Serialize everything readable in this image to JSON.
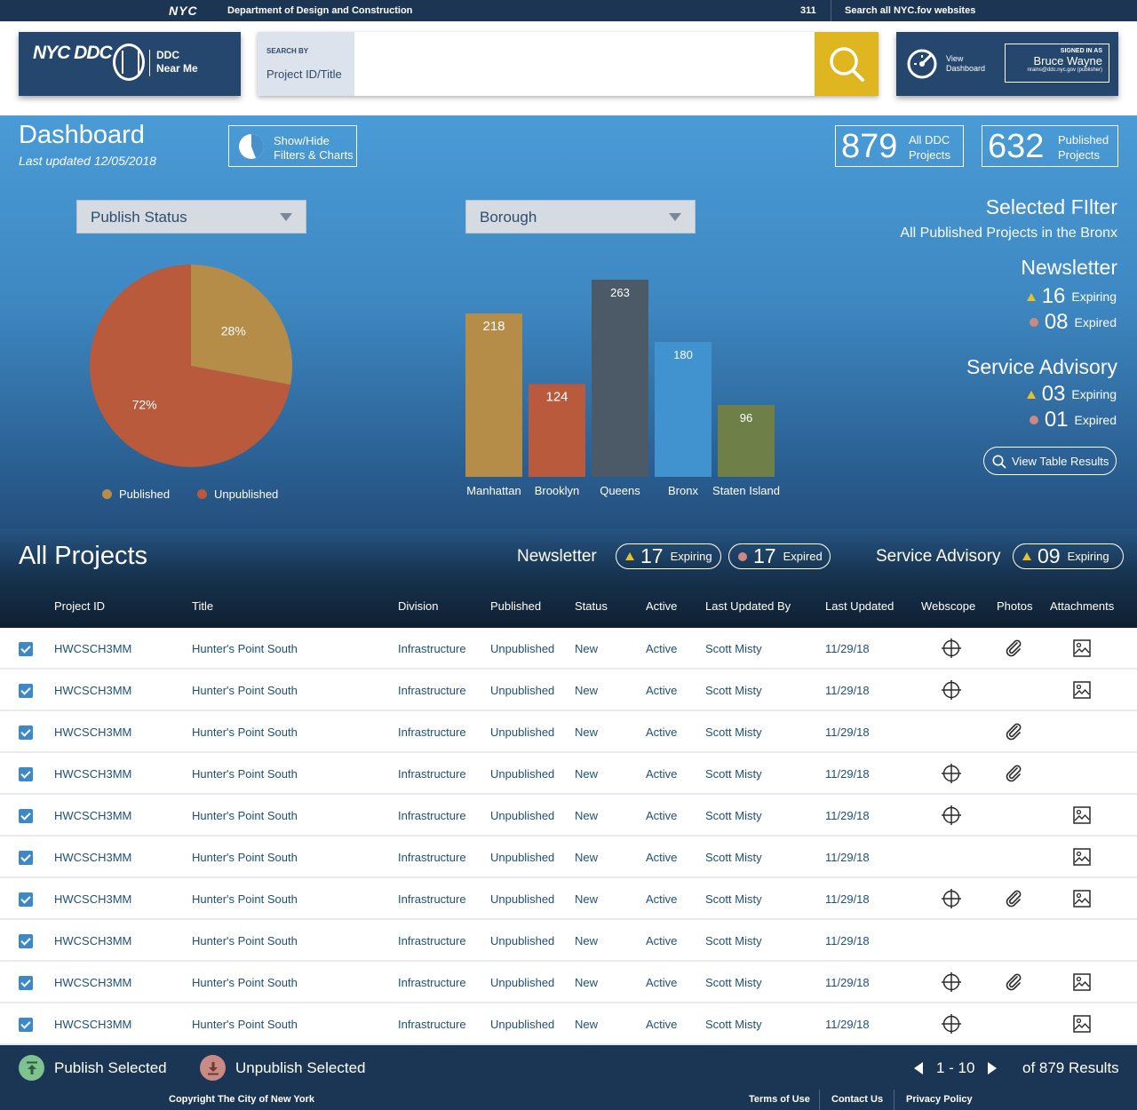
{
  "topbar": {
    "logo": "NYC",
    "department": "Department of Design and Construction",
    "phone": "311",
    "search_all": "Search all NYC.fov websites"
  },
  "header": {
    "logo_text": "NYC DDC",
    "near_me_line1": "DDC",
    "near_me_line2": "Near Me",
    "search_by_label": "SEARCH BY",
    "search_by_value": "Project ID/Title",
    "search_placeholder": "",
    "view_dashboard_line1": "View",
    "view_dashboard_line2": "Dashboard",
    "signed_in_label": "SIGNED IN AS",
    "user_name": "Bruce Wayne",
    "user_email": "nrains@ddc.nyc.gov (publisher)"
  },
  "dashboard": {
    "title": "Dashboard",
    "last_updated": "Last updated 12/05/2018",
    "show_hide_line1": "Show/Hide",
    "show_hide_line2": "Filters & Charts",
    "stat_all_value": "879",
    "stat_all_line1": "All DDC",
    "stat_all_line2": "Projects",
    "stat_pub_value": "632",
    "stat_pub_line1": "Published",
    "stat_pub_line2": "Projects",
    "dropdown_publish": "Publish Status",
    "dropdown_borough": "Borough",
    "selected_filter_title": "Selected FIlter",
    "selected_filter_value": "All Published Projects in the Bronx",
    "newsletter_title": "Newsletter",
    "newsletter_expiring": "16",
    "newsletter_expired": "08",
    "service_title": "Service Advisory",
    "service_expiring": "03",
    "service_expired": "01",
    "expiring_label": "Expiring",
    "expired_label": "Expired",
    "view_table": "View Table Results"
  },
  "colors": {
    "gold": "#b58d48",
    "rust": "#b85a3b",
    "slate": "#4b5a66",
    "blue": "#4193d0",
    "olive": "#6f7f48",
    "warning": "#e8c12a",
    "expired": "#c98a84"
  },
  "chart_data": [
    {
      "type": "pie",
      "categories": [
        "Published",
        "Unpublished"
      ],
      "values": [
        28,
        72
      ],
      "labels": [
        "28%",
        "72%"
      ],
      "legend": [
        "Published",
        "Unpublished"
      ],
      "colors": [
        "#b58d48",
        "#b85a3b"
      ]
    },
    {
      "type": "bar",
      "categories": [
        "Manhattan",
        "Brooklyn",
        "Queens",
        "Bronx",
        "Staten Island"
      ],
      "values": [
        218,
        124,
        263,
        180,
        96
      ],
      "colors": [
        "#b58d48",
        "#b85a3b",
        "#4b5a66",
        "#4193d0",
        "#6f7f48"
      ]
    }
  ],
  "all_projects": {
    "title": "All Projects",
    "newsletter_label": "Newsletter",
    "newsletter_expiring": "17",
    "newsletter_expired": "17",
    "service_label": "Service Advisory",
    "service_expiring": "09",
    "expiring_label": "Expiring",
    "expired_label": "Expired",
    "columns": [
      "Project ID",
      "Title",
      "Division",
      "Published",
      "Status",
      "Active",
      "Last Updated By",
      "Last Updated",
      "Webscope",
      "Photos",
      "Attachments"
    ]
  },
  "rows": [
    {
      "id": "HWCSCH3MM",
      "title": "Hunter's Point South",
      "division": "Infrastructure",
      "published": "Unpublished",
      "status": "New",
      "active": "Active",
      "by": "Scott Misty",
      "date": "11/29/18",
      "webscope": true,
      "photos": true,
      "attachments": true
    },
    {
      "id": "HWCSCH3MM",
      "title": "Hunter's Point South",
      "division": "Infrastructure",
      "published": "Unpublished",
      "status": "New",
      "active": "Active",
      "by": "Scott Misty",
      "date": "11/29/18",
      "webscope": true,
      "photos": false,
      "attachments": true
    },
    {
      "id": "HWCSCH3MM",
      "title": "Hunter's Point South",
      "division": "Infrastructure",
      "published": "Unpublished",
      "status": "New",
      "active": "Active",
      "by": "Scott Misty",
      "date": "11/29/18",
      "webscope": false,
      "photos": true,
      "attachments": false
    },
    {
      "id": "HWCSCH3MM",
      "title": "Hunter's Point South",
      "division": "Infrastructure",
      "published": "Unpublished",
      "status": "New",
      "active": "Active",
      "by": "Scott Misty",
      "date": "11/29/18",
      "webscope": true,
      "photos": true,
      "attachments": false
    },
    {
      "id": "HWCSCH3MM",
      "title": "Hunter's Point South",
      "division": "Infrastructure",
      "published": "Unpublished",
      "status": "New",
      "active": "Active",
      "by": "Scott Misty",
      "date": "11/29/18",
      "webscope": true,
      "photos": false,
      "attachments": true
    },
    {
      "id": "HWCSCH3MM",
      "title": "Hunter's Point South",
      "division": "Infrastructure",
      "published": "Unpublished",
      "status": "New",
      "active": "Active",
      "by": "Scott Misty",
      "date": "11/29/18",
      "webscope": false,
      "photos": false,
      "attachments": true
    },
    {
      "id": "HWCSCH3MM",
      "title": "Hunter's Point South",
      "division": "Infrastructure",
      "published": "Unpublished",
      "status": "New",
      "active": "Active",
      "by": "Scott Misty",
      "date": "11/29/18",
      "webscope": true,
      "photos": true,
      "attachments": true
    },
    {
      "id": "HWCSCH3MM",
      "title": "Hunter's Point South",
      "division": "Infrastructure",
      "published": "Unpublished",
      "status": "New",
      "active": "Active",
      "by": "Scott Misty",
      "date": "11/29/18",
      "webscope": false,
      "photos": false,
      "attachments": false
    },
    {
      "id": "HWCSCH3MM",
      "title": "Hunter's Point South",
      "division": "Infrastructure",
      "published": "Unpublished",
      "status": "New",
      "active": "Active",
      "by": "Scott Misty",
      "date": "11/29/18",
      "webscope": true,
      "photos": true,
      "attachments": true
    },
    {
      "id": "HWCSCH3MM",
      "title": "Hunter's Point South",
      "division": "Infrastructure",
      "published": "Unpublished",
      "status": "New",
      "active": "Active",
      "by": "Scott Misty",
      "date": "11/29/18",
      "webscope": true,
      "photos": false,
      "attachments": true
    }
  ],
  "footer": {
    "publish": "Publish Selected",
    "unpublish": "Unpublish Selected",
    "range": "1 - 10",
    "results": "of 879 Results",
    "copyright": "Copyright The City of New York",
    "terms": "Terms of Use",
    "contact": "Contact Us",
    "privacy": "Privacy Policy"
  }
}
